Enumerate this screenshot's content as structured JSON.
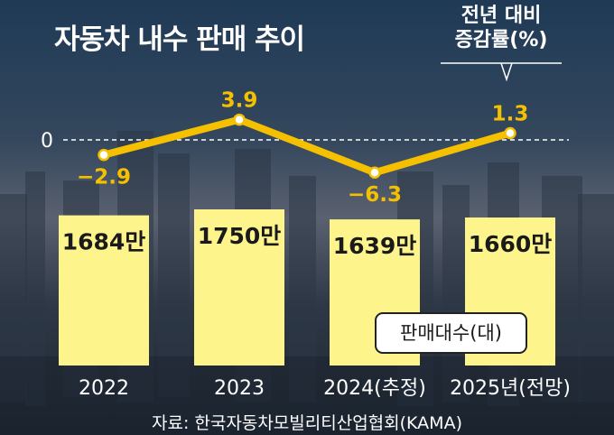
{
  "title": "자동차 내수 판매 추이",
  "yoy_legend": {
    "line1": "전년 대비",
    "line2": "증감률(%)"
  },
  "unit_legend": "판매대수(대)",
  "source": "자료: 한국자동차모빌리티산업협회(KAMA)",
  "colors": {
    "bar": "#fdf58c",
    "line": "#f5c000",
    "text_dark": "#1a1a1a",
    "text_light": "#ffffff",
    "line_label": "#f5c000"
  },
  "chart_data": {
    "type": "bar",
    "categories": [
      "2022",
      "2023",
      "2024(추정)",
      "2025년(전망)"
    ],
    "bar_labels": [
      "1684만",
      "1750만",
      "1639만",
      "1660만"
    ],
    "values": [
      1684,
      1750,
      1639,
      1660
    ],
    "bar_unit": "판매대수(대)",
    "line": {
      "name": "전년 대비 증감률(%)",
      "values": [
        -2.9,
        3.9,
        -6.3,
        1.3
      ],
      "labels": [
        "−2.9",
        "3.9",
        "−6.3",
        "1.3"
      ]
    },
    "zero_label": "0"
  }
}
